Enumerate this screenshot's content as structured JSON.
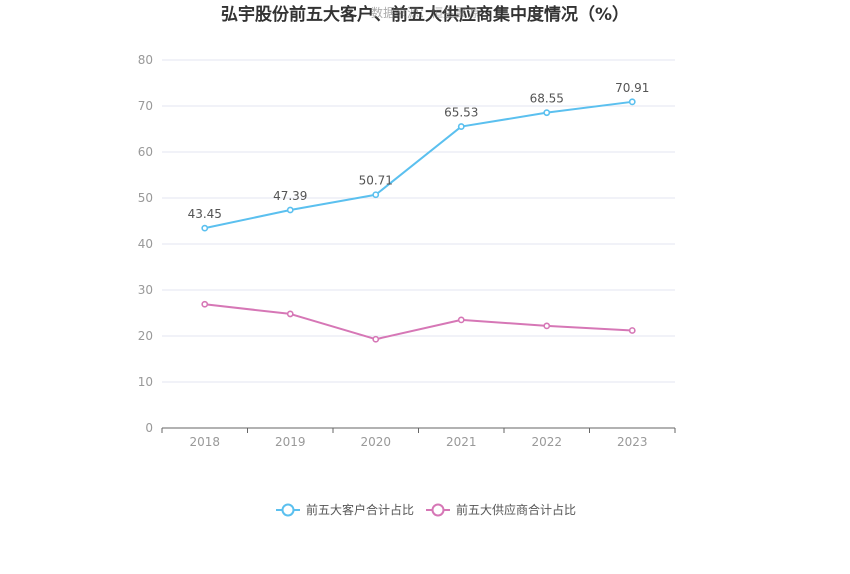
{
  "chart_data": {
    "type": "line",
    "title": "弘宇股份前五大客户、前五大供应商集中度情况（%）",
    "watermark": "数据来源：恒生聚源",
    "categories": [
      "2018",
      "2019",
      "2020",
      "2021",
      "2022",
      "2023"
    ],
    "ylim": [
      0,
      80
    ],
    "yticks": [
      "0",
      "10",
      "20",
      "30",
      "40",
      "50",
      "60",
      "70",
      "80"
    ],
    "grid": true,
    "legend_position": "bottom-center",
    "series": [
      {
        "name": "前五大客户合计占比",
        "color": "#5bc0ef",
        "values": [
          43.45,
          47.39,
          50.71,
          65.53,
          68.55,
          70.91
        ],
        "labels": [
          "43.45",
          "47.39",
          "50.71",
          "65.53",
          "68.55",
          "70.91"
        ]
      },
      {
        "name": "前五大供应商合计占比",
        "color": "#d677b6",
        "values": [
          26.9,
          24.8,
          19.3,
          23.5,
          22.2,
          21.2
        ],
        "labels": []
      }
    ]
  }
}
